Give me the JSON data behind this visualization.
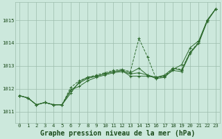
{
  "title": "Graphe pression niveau de la mer (hPa)",
  "x_values": [
    0,
    1,
    2,
    3,
    4,
    5,
    6,
    7,
    8,
    9,
    10,
    11,
    12,
    13,
    14,
    15,
    16,
    17,
    18,
    19,
    20,
    21,
    22,
    23
  ],
  "series1": [
    1011.7,
    1011.6,
    1011.3,
    1011.4,
    1011.3,
    1011.3,
    1011.8,
    1012.3,
    1012.5,
    1012.55,
    1012.65,
    1012.75,
    1012.8,
    1012.55,
    1012.55,
    1012.55,
    1012.5,
    1012.55,
    1012.8,
    1012.75,
    1013.55,
    1014.0,
    1014.95,
    1015.5
  ],
  "series2": [
    1011.7,
    1011.6,
    1011.3,
    1011.4,
    1011.3,
    1011.3,
    1012.05,
    1012.35,
    1012.5,
    1012.6,
    1012.7,
    1012.8,
    1012.85,
    1012.75,
    1014.2,
    1013.4,
    1012.45,
    1012.55,
    1012.9,
    1012.85,
    1013.6,
    1014.05,
    1015.0,
    1015.5
  ],
  "series3": [
    1011.7,
    1011.6,
    1011.3,
    1011.4,
    1011.3,
    1011.3,
    1011.95,
    1012.1,
    1012.35,
    1012.5,
    1012.6,
    1012.7,
    1012.75,
    1012.65,
    1012.7,
    1012.6,
    1012.45,
    1012.5,
    1012.85,
    1013.05,
    1013.8,
    1014.1,
    1015.0,
    1015.5
  ],
  "series4": [
    1011.7,
    1011.6,
    1011.3,
    1011.4,
    1011.3,
    1011.3,
    1011.9,
    1012.25,
    1012.45,
    1012.55,
    1012.65,
    1012.75,
    1012.8,
    1012.7,
    1012.9,
    1012.6,
    1012.5,
    1012.6,
    1012.9,
    1012.8,
    1013.6,
    1014.0,
    1015.0,
    1015.5
  ],
  "ylim": [
    1010.5,
    1015.8
  ],
  "yticks": [
    1011,
    1012,
    1013,
    1014,
    1015
  ],
  "xlim": [
    -0.5,
    23.5
  ],
  "line_color": "#2d6a2d",
  "bg_color": "#cce8dc",
  "grid_color": "#9cbcac",
  "label_color": "#1a4a1a",
  "title_fontsize": 7.0,
  "tick_fontsize": 5.2
}
